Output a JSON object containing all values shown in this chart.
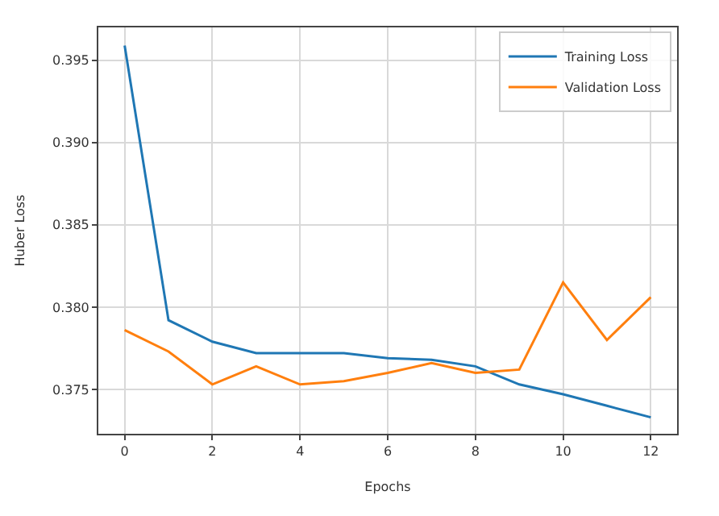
{
  "chart_data": {
    "type": "line",
    "xlabel": "Epochs",
    "ylabel": "Huber Loss",
    "x": [
      0,
      1,
      2,
      3,
      4,
      5,
      6,
      7,
      8,
      9,
      10,
      11,
      12
    ],
    "series": [
      {
        "name": "Training Loss",
        "color": "#1f77b4",
        "values": [
          0.3959,
          0.3792,
          0.3779,
          0.3772,
          0.3772,
          0.3772,
          0.3769,
          0.3768,
          0.3764,
          0.3753,
          0.3747,
          0.374,
          0.3733
        ]
      },
      {
        "name": "Validation Loss",
        "color": "#ff7f0e",
        "values": [
          0.3786,
          0.3773,
          0.3753,
          0.3764,
          0.3753,
          0.3755,
          0.376,
          0.3766,
          0.376,
          0.3762,
          0.3815,
          0.378,
          0.3806
        ]
      }
    ],
    "xlim": [
      -0.6,
      12.6
    ],
    "xticks": [
      0,
      2,
      4,
      6,
      8,
      10,
      12
    ],
    "ylim": [
      0.3723,
      0.397
    ],
    "yticks": [
      0.375,
      {
        "value": 0.38,
        "label": "0.380"
      },
      0.385,
      {
        "value": 0.39,
        "label": "0.390"
      },
      0.395
    ],
    "grid": true,
    "legend": "top right",
    "line_style": "solid"
  }
}
